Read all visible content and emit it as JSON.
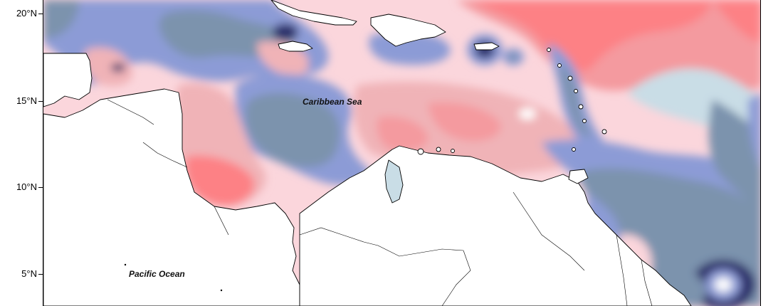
{
  "map": {
    "labels": {
      "caribbean_sea": "Caribbean Sea",
      "pacific_ocean": "Pacific Ocean"
    },
    "lat_ticks": [
      "20°N",
      "15°N",
      "10°N",
      "5°N"
    ],
    "palette": {
      "dark_navy": "#2b2f6b",
      "slate_blue": "#7b93ad",
      "periwinkle": "#8c9bd6",
      "light_blue": "#c9dde6",
      "pale_pink": "#fbd6dc",
      "pink": "#f0b3b7",
      "salmon": "#f49a9f",
      "red": "#fd8185",
      "land": "#ffffff",
      "coastline": "#000000"
    }
  }
}
